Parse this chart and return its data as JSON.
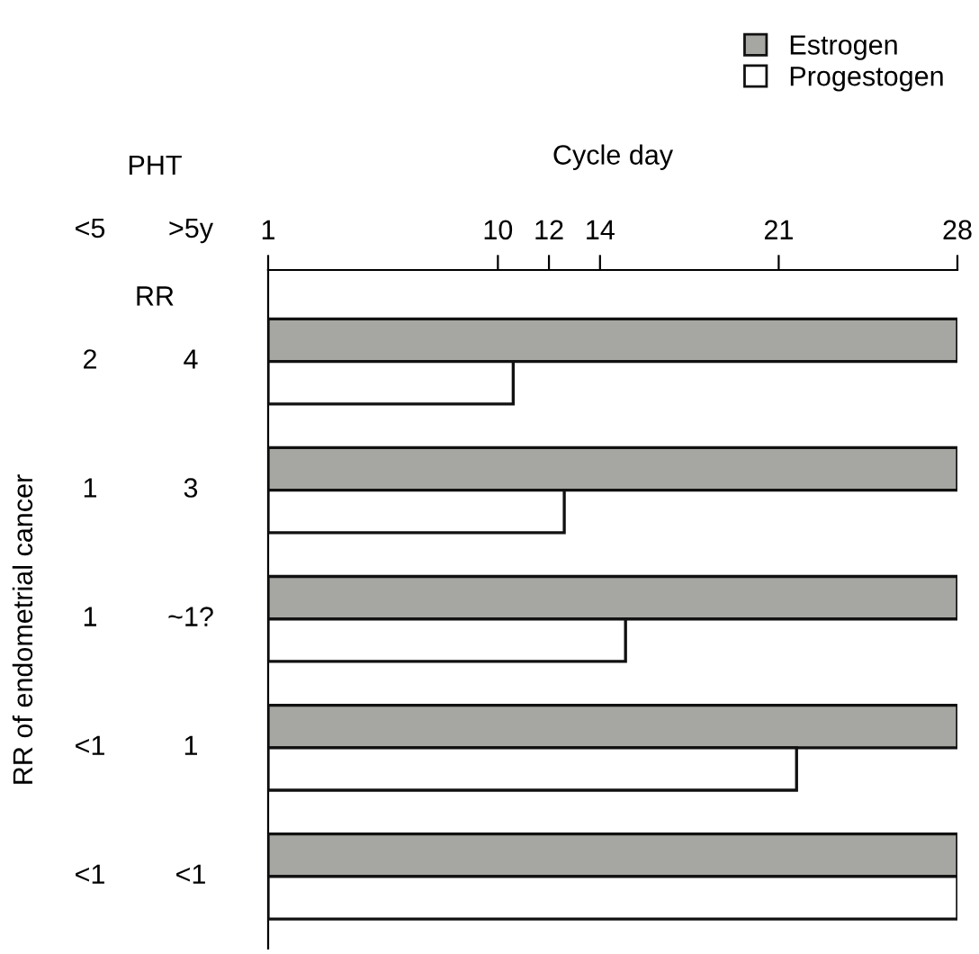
{
  "chart_data": {
    "type": "bar",
    "orientation": "horizontal",
    "xlabel": "Cycle day",
    "categories": [
      null,
      null,
      null,
      null,
      null
    ],
    "series": [
      {
        "name": "Estrogen",
        "color": "#a6a6a2",
        "base": [
          1,
          1,
          1,
          1,
          1
        ],
        "values": [
          27,
          27,
          27,
          27,
          27
        ]
      },
      {
        "name": "Progestogen",
        "color": "#ffffff",
        "base": [
          1,
          1,
          1,
          1,
          1
        ],
        "values": [
          9.6,
          11.6,
          14,
          20.7,
          27
        ]
      }
    ],
    "xlim": [
      1,
      28
    ],
    "xticks": [
      1,
      10,
      12,
      14,
      21,
      28
    ],
    "annotations": [
      "PHT",
      "<5",
      ">5y",
      "RR",
      "2",
      "4",
      "1",
      "3",
      "1",
      "~1?",
      "<1",
      "1",
      "<1",
      "<1",
      "RR of endometrial cancer"
    ],
    "legend": "top right",
    "grid": false
  }
}
